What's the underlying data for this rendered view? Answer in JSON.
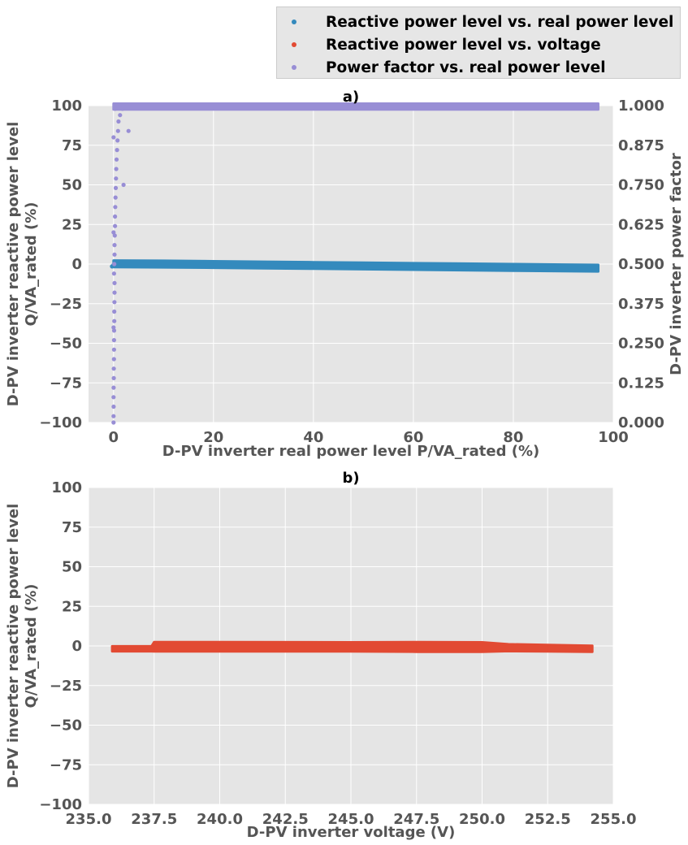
{
  "legend": {
    "items": [
      {
        "label": "Reactive power level vs. real power level",
        "color": "#348abd"
      },
      {
        "label": "Reactive power level vs. voltage",
        "color": "#e24a33"
      },
      {
        "label": "Power factor vs. real power level",
        "color": "#988ed5"
      }
    ]
  },
  "chart_data": [
    {
      "type": "scatter",
      "title": "a)",
      "xlabel": "D-PV inverter real power level P/VA_rated (%)",
      "ylabel": "D-PV inverter reactive power level\nQ/VA_rated (%)",
      "y2label": "D-PV inverter power factor",
      "xlim": [
        -5,
        100
      ],
      "ylim": [
        -100,
        100
      ],
      "y2lim": [
        0,
        1
      ],
      "xticks": [
        "0",
        "20",
        "40",
        "60",
        "80",
        "100"
      ],
      "yticks": [
        "−100",
        "−75",
        "−50",
        "−25",
        "0",
        "25",
        "50",
        "75",
        "100"
      ],
      "y2ticks": [
        "0.000",
        "0.125",
        "0.250",
        "0.375",
        "0.500",
        "0.625",
        "0.750",
        "0.875",
        "1.000"
      ],
      "grid": true,
      "series": [
        {
          "name": "Reactive power level vs. real power level",
          "color": "#348abd",
          "axis": "left",
          "band": {
            "x": [
              0,
              10,
              20,
              30,
              40,
              50,
              60,
              70,
              80,
              90,
              97
            ],
            "y": [
              0.2,
              0.0,
              -0.3,
              -0.6,
              -0.9,
              -1.2,
              -1.5,
              -1.8,
              -2.1,
              -2.4,
              -2.6
            ],
            "halfwidth": 0.8
          },
          "points": [
            [
              -0.3,
              -1.5
            ],
            [
              0.0,
              -0.5
            ],
            [
              0.3,
              -1.2
            ],
            [
              0.5,
              0.4
            ],
            [
              1.0,
              -0.6
            ],
            [
              2.0,
              0.3
            ],
            [
              3.5,
              -0.4
            ]
          ]
        },
        {
          "name": "Power factor vs. real power level",
          "color": "#988ed5",
          "axis": "right",
          "band": {
            "x": [
              0,
              10,
              20,
              30,
              40,
              50,
              60,
              70,
              80,
              90,
              97
            ],
            "y": [
              0.997,
              0.997,
              0.997,
              0.997,
              0.997,
              0.997,
              0.997,
              0.997,
              0.997,
              0.997,
              0.997
            ],
            "halfwidth": 0.003
          },
          "points": [
            [
              0.0,
              0.0
            ],
            [
              0.0,
              0.02
            ],
            [
              0.02,
              0.05
            ],
            [
              0.0,
              0.08
            ],
            [
              0.03,
              0.11
            ],
            [
              0.05,
              0.14
            ],
            [
              0.05,
              0.17
            ],
            [
              0.08,
              0.2
            ],
            [
              0.1,
              0.23
            ],
            [
              0.1,
              0.26
            ],
            [
              0.12,
              0.29
            ],
            [
              0.15,
              0.32
            ],
            [
              0.15,
              0.35
            ],
            [
              0.18,
              0.38
            ],
            [
              0.2,
              0.41
            ],
            [
              0.2,
              0.44
            ],
            [
              0.1,
              0.47
            ],
            [
              0.15,
              0.5
            ],
            [
              0.2,
              0.53
            ],
            [
              0.2,
              0.56
            ],
            [
              0.25,
              0.59
            ],
            [
              0.3,
              0.62
            ],
            [
              0.3,
              0.65
            ],
            [
              0.35,
              0.68
            ],
            [
              0.4,
              0.71
            ],
            [
              0.45,
              0.74
            ],
            [
              0.5,
              0.77
            ],
            [
              0.55,
              0.8
            ],
            [
              0.6,
              0.83
            ],
            [
              0.7,
              0.86
            ],
            [
              0.8,
              0.89
            ],
            [
              0.9,
              0.92
            ],
            [
              1.0,
              0.95
            ],
            [
              1.3,
              0.97
            ],
            [
              1.8,
              0.99
            ],
            [
              2.0,
              0.75
            ],
            [
              3.0,
              0.92
            ],
            [
              0.0,
              0.3
            ],
            [
              0.0,
              0.6
            ],
            [
              0.0,
              0.9
            ],
            [
              0.3,
              0.99
            ],
            [
              0.5,
              1.0
            ],
            [
              94,
              1.0
            ],
            [
              96,
              1.0
            ]
          ]
        }
      ]
    },
    {
      "type": "scatter",
      "title": "b)",
      "xlabel": "D-PV inverter voltage (V)",
      "ylabel": "D-PV inverter reactive power level\nQ/VA_rated (%)",
      "xlim": [
        235.0,
        255.0
      ],
      "ylim": [
        -100,
        100
      ],
      "xticks": [
        "235.0",
        "237.5",
        "240.0",
        "242.5",
        "245.0",
        "247.5",
        "250.0",
        "252.5",
        "255.0"
      ],
      "yticks": [
        "−100",
        "−75",
        "−50",
        "−25",
        "0",
        "25",
        "50",
        "75",
        "100"
      ],
      "grid": true,
      "series": [
        {
          "name": "Reactive power level vs. voltage",
          "color": "#e24a33",
          "axis": "left",
          "band": {
            "x": [
              235.9,
              237.4,
              237.5,
              240.0,
              245.0,
              247.5,
              250.0,
              251.0,
              252.5,
              254.2
            ],
            "y": [
              -1.8,
              -1.8,
              -0.5,
              -0.5,
              -0.6,
              -0.6,
              -0.7,
              -1.1,
              -1.4,
              -1.8
            ],
            "halfwidth": [
              0.3,
              0.3,
              1.7,
              1.7,
              1.6,
              1.8,
              1.7,
              0.9,
              0.8,
              0.6
            ]
          },
          "points": [
            [
              237.0,
              -1.6
            ],
            [
              237.3,
              -1.2
            ],
            [
              250.6,
              0.8
            ],
            [
              253.9,
              -1.4
            ]
          ]
        }
      ]
    }
  ]
}
